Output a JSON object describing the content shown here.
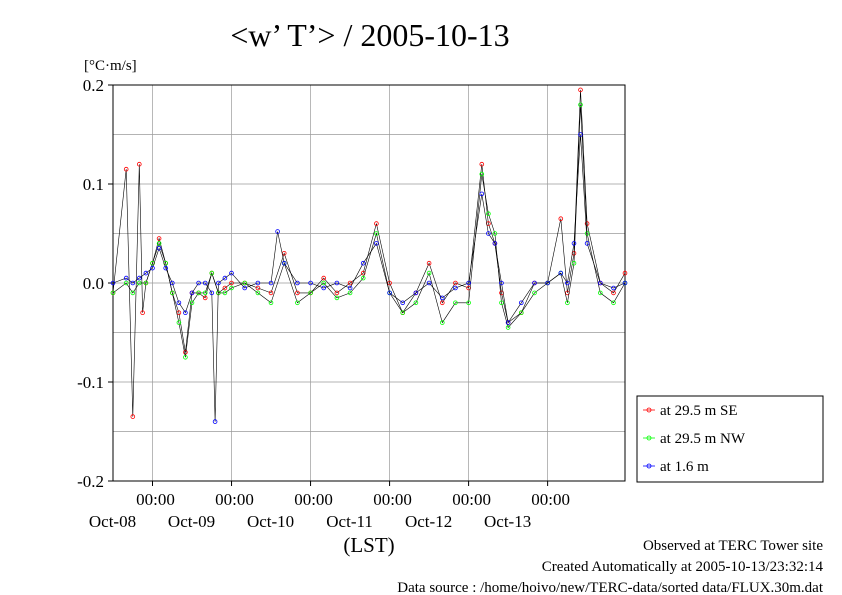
{
  "chart_data": {
    "type": "line",
    "title": "<w’ T’> / 2005-10-13",
    "ylabel": "[°C·m/s]",
    "xlabel": "(LST)",
    "ylim": [
      -0.2,
      0.2
    ],
    "xlim": [
      "2005-10-07T12:00",
      "2005-10-13T23:30"
    ],
    "y_ticks": [
      "0.2",
      "0.1",
      "0.0",
      "-0.1",
      "-0.2"
    ],
    "y_tick_values": [
      0.2,
      0.1,
      0.0,
      -0.1,
      -0.2
    ],
    "x_ticks": [
      {
        "time": "00:00",
        "date": "Oct-08",
        "x": "2005-10-08T00:00"
      },
      {
        "time": "00:00",
        "date": "Oct-09",
        "x": "2005-10-09T00:00"
      },
      {
        "time": "00:00",
        "date": "Oct-10",
        "x": "2005-10-10T00:00"
      },
      {
        "time": "00:00",
        "date": "Oct-11",
        "x": "2005-10-11T00:00"
      },
      {
        "time": "00:00",
        "date": "Oct-12",
        "x": "2005-10-12T00:00"
      },
      {
        "time": "00:00",
        "date": "Oct-13",
        "x": "2005-10-13T00:00"
      }
    ],
    "grid": true,
    "legend_position": "outside-right",
    "series": [
      {
        "name": "at 29.5 m SE",
        "color": "#ff0000",
        "x": [
          "2005-10-07T12:00",
          "2005-10-07T16:00",
          "2005-10-07T18:00",
          "2005-10-07T20:00",
          "2005-10-07T21:00",
          "2005-10-07T22:00",
          "2005-10-08T00:00",
          "2005-10-08T02:00",
          "2005-10-08T04:00",
          "2005-10-08T06:00",
          "2005-10-08T08:00",
          "2005-10-08T10:00",
          "2005-10-08T12:00",
          "2005-10-08T14:00",
          "2005-10-08T16:00",
          "2005-10-08T18:00",
          "2005-10-08T20:00",
          "2005-10-08T22:00",
          "2005-10-09T00:00",
          "2005-10-09T04:00",
          "2005-10-09T08:00",
          "2005-10-09T12:00",
          "2005-10-09T16:00",
          "2005-10-09T20:00",
          "2005-10-10T00:00",
          "2005-10-10T04:00",
          "2005-10-10T08:00",
          "2005-10-10T12:00",
          "2005-10-10T16:00",
          "2005-10-10T20:00",
          "2005-10-11T00:00",
          "2005-10-11T04:00",
          "2005-10-11T08:00",
          "2005-10-11T12:00",
          "2005-10-11T16:00",
          "2005-10-11T20:00",
          "2005-10-12T00:00",
          "2005-10-12T04:00",
          "2005-10-12T06:00",
          "2005-10-12T08:00",
          "2005-10-12T10:00",
          "2005-10-12T12:00",
          "2005-10-12T16:00",
          "2005-10-12T20:00",
          "2005-10-13T00:00",
          "2005-10-13T04:00",
          "2005-10-13T06:00",
          "2005-10-13T08:00",
          "2005-10-13T10:00",
          "2005-10-13T12:00",
          "2005-10-13T16:00",
          "2005-10-13T20:00",
          "2005-10-13T23:30"
        ],
        "values": [
          -0.01,
          0.115,
          -0.135,
          0.12,
          -0.03,
          0.0,
          0.02,
          0.045,
          0.02,
          -0.01,
          -0.03,
          -0.07,
          -0.01,
          -0.01,
          -0.015,
          0.01,
          -0.01,
          -0.005,
          0.0,
          0.0,
          -0.005,
          -0.01,
          0.03,
          -0.01,
          -0.01,
          0.005,
          -0.01,
          0.0,
          0.01,
          0.06,
          0.0,
          -0.03,
          -0.01,
          0.02,
          -0.02,
          0.0,
          -0.005,
          0.12,
          0.06,
          0.04,
          -0.01,
          -0.04,
          -0.03,
          0.0,
          0.0,
          0.065,
          -0.01,
          0.03,
          0.195,
          0.06,
          0.0,
          -0.01,
          0.01
        ]
      },
      {
        "name": "at 29.5 m NW",
        "color": "#00ff00",
        "x": [
          "2005-10-07T12:00",
          "2005-10-07T16:00",
          "2005-10-07T18:00",
          "2005-10-07T20:00",
          "2005-10-07T22:00",
          "2005-10-08T00:00",
          "2005-10-08T02:00",
          "2005-10-08T04:00",
          "2005-10-08T06:00",
          "2005-10-08T08:00",
          "2005-10-08T10:00",
          "2005-10-08T12:00",
          "2005-10-08T14:00",
          "2005-10-08T16:00",
          "2005-10-08T18:00",
          "2005-10-08T20:00",
          "2005-10-08T22:00",
          "2005-10-09T00:00",
          "2005-10-09T04:00",
          "2005-10-09T08:00",
          "2005-10-09T12:00",
          "2005-10-09T16:00",
          "2005-10-09T20:00",
          "2005-10-10T00:00",
          "2005-10-10T04:00",
          "2005-10-10T08:00",
          "2005-10-10T12:00",
          "2005-10-10T16:00",
          "2005-10-10T20:00",
          "2005-10-11T00:00",
          "2005-10-11T04:00",
          "2005-10-11T08:00",
          "2005-10-11T12:00",
          "2005-10-11T16:00",
          "2005-10-11T20:00",
          "2005-10-12T00:00",
          "2005-10-12T04:00",
          "2005-10-12T06:00",
          "2005-10-12T08:00",
          "2005-10-12T10:00",
          "2005-10-12T12:00",
          "2005-10-12T16:00",
          "2005-10-12T20:00",
          "2005-10-13T00:00",
          "2005-10-13T04:00",
          "2005-10-13T06:00",
          "2005-10-13T08:00",
          "2005-10-13T10:00",
          "2005-10-13T12:00",
          "2005-10-13T16:00",
          "2005-10-13T20:00",
          "2005-10-13T23:30"
        ],
        "values": [
          -0.01,
          0.0,
          -0.01,
          0.0,
          0.0,
          0.02,
          0.04,
          0.02,
          -0.01,
          -0.04,
          -0.075,
          -0.02,
          -0.01,
          -0.01,
          0.01,
          -0.01,
          -0.01,
          -0.005,
          0.0,
          -0.01,
          -0.02,
          0.02,
          -0.02,
          -0.01,
          0.0,
          -0.015,
          -0.01,
          0.005,
          0.05,
          -0.01,
          -0.03,
          -0.02,
          0.01,
          -0.04,
          -0.02,
          -0.02,
          0.11,
          0.07,
          0.05,
          -0.02,
          -0.045,
          -0.03,
          -0.01,
          0.0,
          0.01,
          -0.02,
          0.02,
          0.18,
          0.05,
          -0.01,
          -0.02,
          0.0
        ]
      },
      {
        "name": "at 1.6 m",
        "color": "#0000ff",
        "x": [
          "2005-10-07T12:00",
          "2005-10-07T16:00",
          "2005-10-07T18:00",
          "2005-10-07T20:00",
          "2005-10-07T22:00",
          "2005-10-08T00:00",
          "2005-10-08T02:00",
          "2005-10-08T04:00",
          "2005-10-08T06:00",
          "2005-10-08T08:00",
          "2005-10-08T10:00",
          "2005-10-08T12:00",
          "2005-10-08T14:00",
          "2005-10-08T16:00",
          "2005-10-08T18:00",
          "2005-10-08T19:00",
          "2005-10-08T20:00",
          "2005-10-08T22:00",
          "2005-10-09T00:00",
          "2005-10-09T04:00",
          "2005-10-09T08:00",
          "2005-10-09T12:00",
          "2005-10-09T14:00",
          "2005-10-09T16:00",
          "2005-10-09T20:00",
          "2005-10-10T00:00",
          "2005-10-10T04:00",
          "2005-10-10T08:00",
          "2005-10-10T12:00",
          "2005-10-10T16:00",
          "2005-10-10T20:00",
          "2005-10-11T00:00",
          "2005-10-11T04:00",
          "2005-10-11T08:00",
          "2005-10-11T12:00",
          "2005-10-11T16:00",
          "2005-10-11T20:00",
          "2005-10-12T00:00",
          "2005-10-12T04:00",
          "2005-10-12T06:00",
          "2005-10-12T08:00",
          "2005-10-12T10:00",
          "2005-10-12T12:00",
          "2005-10-12T16:00",
          "2005-10-12T20:00",
          "2005-10-13T00:00",
          "2005-10-13T04:00",
          "2005-10-13T06:00",
          "2005-10-13T08:00",
          "2005-10-13T10:00",
          "2005-10-13T12:00",
          "2005-10-13T16:00",
          "2005-10-13T20:00",
          "2005-10-13T23:30"
        ],
        "values": [
          0.0,
          0.005,
          0.0,
          0.005,
          0.01,
          0.015,
          0.035,
          0.015,
          0.0,
          -0.02,
          -0.03,
          -0.01,
          0.0,
          0.0,
          -0.01,
          -0.14,
          0.0,
          0.005,
          0.01,
          -0.005,
          0.0,
          0.0,
          0.052,
          0.02,
          0.0,
          0.0,
          -0.005,
          0.0,
          -0.005,
          0.02,
          0.04,
          -0.01,
          -0.02,
          -0.01,
          0.0,
          -0.015,
          -0.005,
          0.0,
          0.09,
          0.05,
          0.04,
          0.0,
          -0.04,
          -0.02,
          0.0,
          0.0,
          0.01,
          0.0,
          0.04,
          0.15,
          0.04,
          0.0,
          -0.005,
          0.0
        ]
      }
    ]
  },
  "footer": {
    "observed": "Observed at TERC Tower site",
    "created": "Created Automatically at 2005-10-13/23:32:14",
    "source": "Data source : /home/hoivo/new/TERC-data/sorted  data/FLUX.30m.dat"
  }
}
